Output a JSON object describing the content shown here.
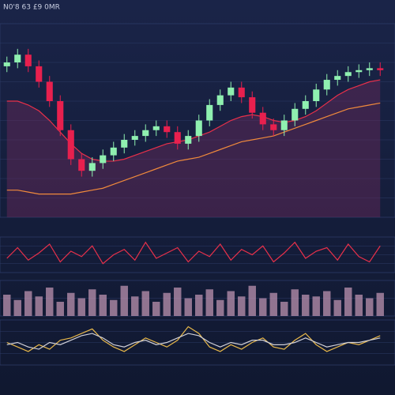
{
  "chart_data": [
    {
      "type": "candlestick",
      "title": "N0'8 63 £9 0MR",
      "ylim": [
        0,
        100
      ],
      "yticks": [
        10,
        20,
        30,
        40,
        50,
        60,
        70,
        80,
        90
      ],
      "grid": true,
      "up_color": "#8ff0b0",
      "down_color": "#e8204e",
      "open": [
        78,
        80,
        84,
        78,
        70,
        60,
        45,
        30,
        24,
        28,
        32,
        36,
        40,
        42,
        45,
        47,
        44,
        38,
        42,
        50,
        58,
        63,
        67,
        62,
        54,
        48,
        45,
        50,
        56,
        60,
        66,
        71,
        73,
        75,
        76,
        77
      ],
      "high": [
        83,
        87,
        87,
        81,
        73,
        63,
        48,
        33,
        31,
        35,
        39,
        43,
        45,
        48,
        50,
        50,
        47,
        45,
        53,
        61,
        66,
        70,
        70,
        65,
        57,
        51,
        53,
        59,
        63,
        69,
        74,
        76,
        78,
        79,
        80,
        80
      ],
      "low": [
        75,
        77,
        75,
        67,
        57,
        42,
        27,
        21,
        21,
        25,
        29,
        33,
        37,
        39,
        42,
        41,
        35,
        35,
        39,
        47,
        55,
        60,
        59,
        51,
        45,
        42,
        42,
        47,
        53,
        57,
        63,
        68,
        70,
        72,
        73,
        73
      ],
      "close": [
        80,
        84,
        78,
        70,
        60,
        45,
        30,
        24,
        28,
        32,
        36,
        40,
        42,
        45,
        47,
        44,
        38,
        42,
        50,
        58,
        63,
        67,
        62,
        54,
        48,
        45,
        50,
        56,
        60,
        66,
        71,
        73,
        75,
        76,
        77,
        76
      ],
      "series": [
        {
          "color": "#e8304a",
          "values": [
            60,
            60,
            58,
            55,
            50,
            44,
            38,
            33,
            30,
            29,
            29,
            30,
            32,
            34,
            36,
            38,
            39,
            40,
            42,
            44,
            47,
            50,
            52,
            53,
            52,
            50,
            49,
            50,
            52,
            55,
            59,
            63,
            66,
            68,
            70,
            71
          ]
        },
        {
          "color": "#f08a3c",
          "values": [
            14,
            14,
            13,
            12,
            12,
            12,
            12,
            13,
            14,
            15,
            17,
            19,
            21,
            23,
            25,
            27,
            29,
            30,
            31,
            33,
            35,
            37,
            39,
            40,
            41,
            42,
            44,
            46,
            48,
            50,
            52,
            54,
            56,
            57,
            58,
            59
          ]
        }
      ]
    },
    {
      "type": "line",
      "ylim": [
        0,
        100
      ],
      "yticks": [
        25,
        50,
        75
      ],
      "grid": true,
      "series": [
        {
          "color": "#e8304a",
          "values": [
            40,
            70,
            35,
            55,
            80,
            30,
            60,
            45,
            75,
            25,
            50,
            65,
            35,
            85,
            40,
            55,
            70,
            30,
            60,
            45,
            80,
            35,
            65,
            50,
            75,
            30,
            55,
            85,
            40,
            60,
            70,
            35,
            80,
            45,
            30,
            75
          ]
        }
      ]
    },
    {
      "type": "bar",
      "ylim": [
        0,
        100
      ],
      "yticks": [
        50
      ],
      "grid": true,
      "color": "#c89ab8",
      "values": [
        60,
        45,
        70,
        55,
        80,
        40,
        65,
        50,
        75,
        60,
        45,
        85,
        55,
        70,
        40,
        65,
        80,
        50,
        60,
        75,
        45,
        70,
        55,
        85,
        50,
        65,
        40,
        75,
        60,
        55,
        70,
        45,
        80,
        60,
        50,
        65
      ]
    },
    {
      "type": "line",
      "ylim": [
        0,
        100
      ],
      "yticks": [
        25,
        50,
        75
      ],
      "grid": true,
      "series": [
        {
          "color": "#e8b84a",
          "values": [
            50,
            40,
            30,
            45,
            35,
            55,
            60,
            70,
            80,
            55,
            40,
            30,
            45,
            60,
            50,
            40,
            55,
            85,
            70,
            40,
            30,
            45,
            35,
            50,
            60,
            40,
            35,
            55,
            70,
            45,
            30,
            40,
            50,
            45,
            55,
            65
          ]
        },
        {
          "color": "#d0d0d8",
          "values": [
            45,
            50,
            40,
            35,
            50,
            45,
            55,
            65,
            70,
            60,
            45,
            40,
            50,
            55,
            45,
            50,
            60,
            70,
            65,
            50,
            40,
            50,
            45,
            55,
            55,
            45,
            45,
            50,
            60,
            50,
            40,
            45,
            50,
            50,
            55,
            60
          ]
        }
      ]
    }
  ]
}
